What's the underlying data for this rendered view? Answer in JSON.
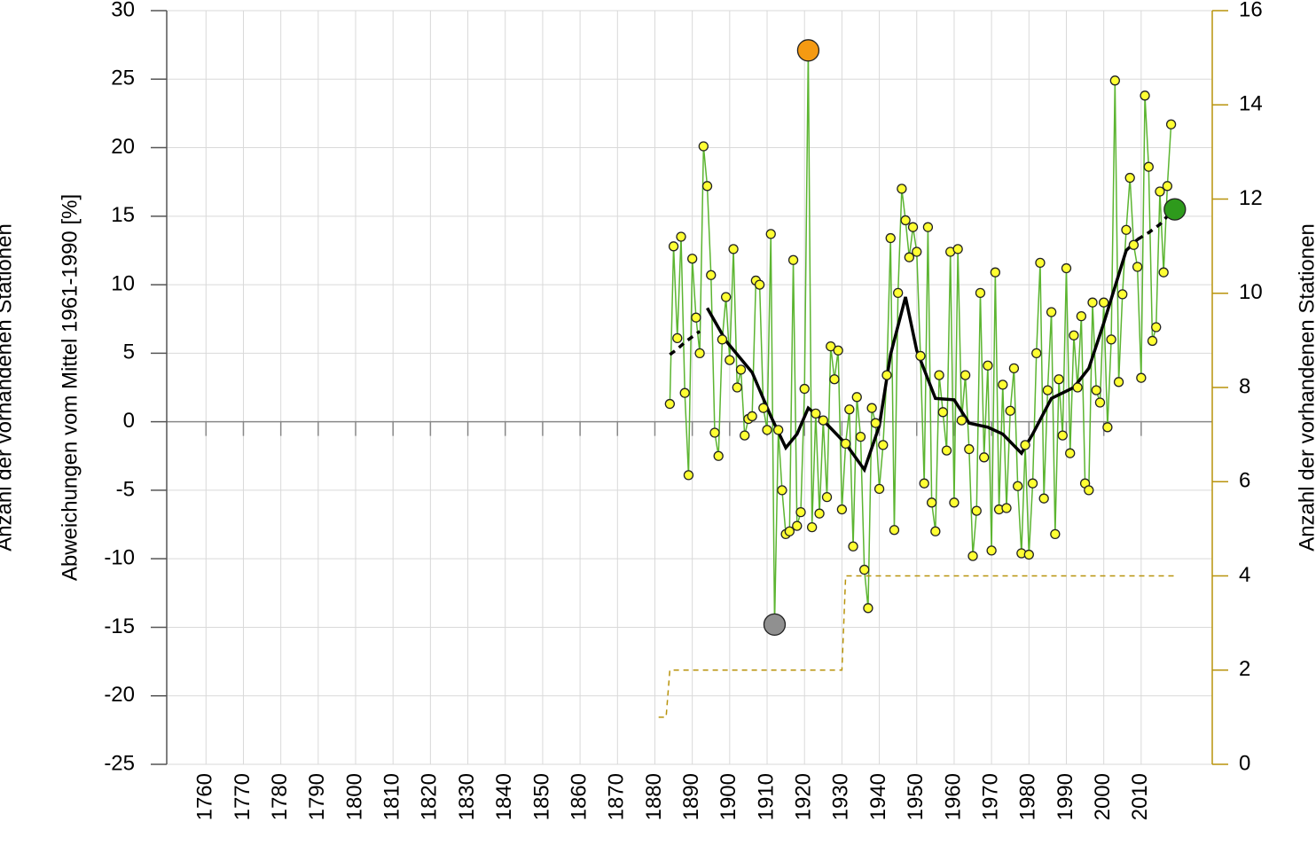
{
  "chart_data": {
    "type": "line",
    "y_label": "Abweichungen vom Mittel 1961-1990 [%]",
    "y2_label": "Anzahl der vorhandenen Stationen",
    "xlim": [
      1749.5,
      2029
    ],
    "xticks": [
      1760,
      1770,
      1780,
      1790,
      1800,
      1810,
      1820,
      1830,
      1840,
      1850,
      1860,
      1870,
      1880,
      1890,
      1900,
      1910,
      1920,
      1930,
      1940,
      1950,
      1960,
      1970,
      1980,
      1990,
      2000,
      2010
    ],
    "ylim": [
      -25,
      30
    ],
    "yticks": [
      -25,
      -20,
      -15,
      -10,
      -5,
      0,
      5,
      10,
      15,
      20,
      25,
      30
    ],
    "y2lim": [
      0,
      16
    ],
    "y2ticks": [
      0,
      2,
      4,
      6,
      8,
      10,
      12,
      14,
      16
    ],
    "y2_color": "#b8930c",
    "grid": true,
    "max_color": "#f59a12",
    "min_color": "#909090",
    "series": [
      {
        "color": "#5cb531",
        "marker_color": "#ffff33",
        "x": [
          1884,
          1885,
          1886,
          1887,
          1888,
          1889,
          1890,
          1891,
          1892,
          1893,
          1894,
          1895,
          1896,
          1897,
          1898,
          1899,
          1900,
          1901,
          1902,
          1903,
          1904,
          1905,
          1906,
          1907,
          1908,
          1909,
          1910,
          1911,
          1912,
          1913,
          1914,
          1915,
          1916,
          1917,
          1918,
          1919,
          1920,
          1921,
          1922,
          1923,
          1924,
          1925,
          1926,
          1927,
          1928,
          1929,
          1930,
          1931,
          1932,
          1933,
          1934,
          1935,
          1936,
          1937,
          1938,
          1939,
          1940,
          1941,
          1942,
          1943,
          1944,
          1945,
          1946,
          1947,
          1948,
          1949,
          1950,
          1951,
          1952,
          1953,
          1954,
          1955,
          1956,
          1957,
          1958,
          1959,
          1960,
          1961,
          1962,
          1963,
          1964,
          1965,
          1966,
          1967,
          1968,
          1969,
          1970,
          1971,
          1972,
          1973,
          1974,
          1975,
          1976,
          1977,
          1978,
          1979,
          1980,
          1981,
          1982,
          1983,
          1984,
          1985,
          1986,
          1987,
          1988,
          1989,
          1990,
          1991,
          1992,
          1993,
          1994,
          1995,
          1996,
          1997,
          1998,
          1999,
          2000,
          2001,
          2002,
          2003,
          2004,
          2005,
          2006,
          2007,
          2008,
          2009,
          2010,
          2011,
          2012,
          2013,
          2014,
          2015,
          2016,
          2017,
          2018
        ],
        "values": [
          1.3,
          12.8,
          6.1,
          13.5,
          2.1,
          -3.9,
          11.9,
          7.6,
          5.0,
          20.1,
          17.2,
          10.7,
          -0.8,
          -2.5,
          6.0,
          9.1,
          4.5,
          12.6,
          2.5,
          3.8,
          -1.0,
          0.2,
          0.4,
          10.3,
          10.0,
          1.0,
          -0.6,
          13.7,
          -14.8,
          -0.6,
          -5.0,
          -8.2,
          -8.0,
          11.8,
          -7.6,
          -6.6,
          2.4,
          27.1,
          -7.7,
          0.6,
          -6.7,
          0.1,
          -5.5,
          5.5,
          3.1,
          5.2,
          -6.4,
          -1.6,
          0.9,
          -9.1,
          1.8,
          -1.1,
          -10.8,
          -13.6,
          1.0,
          -0.1,
          -4.9,
          -1.7,
          3.4,
          13.4,
          -7.9,
          9.4,
          17.0,
          14.7,
          12.0,
          14.2,
          12.4,
          4.8,
          -4.5,
          14.2,
          -5.9,
          -8.0,
          3.4,
          0.7,
          -2.1,
          12.4,
          -5.9,
          12.6,
          0.1,
          3.4,
          -2.0,
          -9.8,
          -6.5,
          9.4,
          -2.6,
          4.1,
          -9.4,
          10.9,
          -6.4,
          2.7,
          -6.3,
          0.8,
          3.9,
          -4.7,
          -9.6,
          -1.7,
          -9.7,
          -4.5,
          5.0,
          11.6,
          -5.6,
          2.3,
          8.0,
          -8.2,
          3.1,
          -1.0,
          11.2,
          -2.3,
          6.3,
          2.5,
          7.7,
          -4.5,
          -5.0,
          8.7,
          2.3,
          1.4,
          8.7,
          -0.4,
          6.0,
          24.9,
          2.9,
          9.3,
          14.0,
          17.8,
          12.9,
          11.3,
          3.2,
          23.8,
          18.6,
          5.9,
          6.9,
          16.8,
          10.9,
          17.2,
          21.7
        ]
      },
      {
        "color": "#000000",
        "dashed": true,
        "x": [
          1884,
          1886,
          1888,
          1890,
          1892
        ],
        "values": [
          4.9,
          5.3,
          5.8,
          6.2,
          6.6
        ]
      },
      {
        "color": "#000000",
        "x": [
          1894,
          1899,
          1906,
          1911,
          1915,
          1918,
          1921,
          1925,
          1931,
          1936,
          1940,
          1943,
          1947,
          1950,
          1955,
          1960,
          1964,
          1969,
          1973,
          1978,
          1981,
          1986,
          1992,
          1996,
          2000,
          2006,
          2009
        ],
        "values": [
          8.3,
          5.9,
          3.6,
          0.4,
          -1.9,
          -0.9,
          1.0,
          0.1,
          -1.6,
          -3.5,
          -0.3,
          4.9,
          9.1,
          5.2,
          1.7,
          1.6,
          -0.1,
          -0.4,
          -0.9,
          -2.3,
          -0.9,
          1.7,
          2.5,
          3.9,
          7.2,
          12.5,
          13.3
        ]
      },
      {
        "color": "#000000",
        "dashed": true,
        "x": [
          2009,
          2012,
          2015,
          2018
        ],
        "values": [
          13.3,
          13.8,
          14.4,
          15.3
        ]
      },
      {
        "color": "#b8930c",
        "dashed": true,
        "axis": "y2",
        "x": [
          1881,
          1883,
          1884,
          1930,
          1931,
          2019
        ],
        "values": [
          1,
          1,
          2,
          2,
          4,
          4
        ]
      }
    ],
    "current": {
      "x": 2019,
      "value": 15.5,
      "color": "#2e9a1c"
    }
  }
}
